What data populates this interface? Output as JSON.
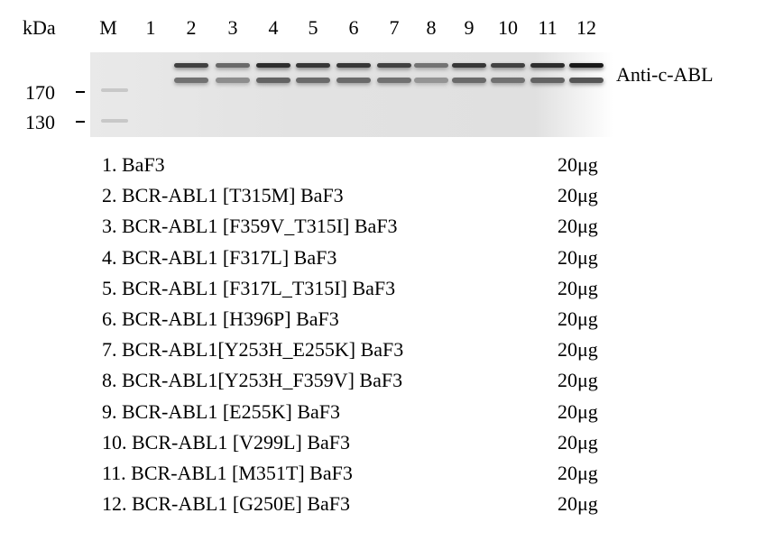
{
  "header": {
    "kda_label": "kDa",
    "marker_label": "M",
    "lanes": [
      "1",
      "2",
      "3",
      "4",
      "5",
      "6",
      "7",
      "8",
      "9",
      "10",
      "11",
      "12"
    ]
  },
  "markers": [
    {
      "label": "170"
    },
    {
      "label": "130"
    }
  ],
  "antibody_label": "Anti-c-ABL",
  "band_intensity": [
    0,
    0.8,
    0.6,
    0.9,
    0.85,
    0.85,
    0.8,
    0.55,
    0.85,
    0.8,
    0.9,
    1.0
  ],
  "samples": [
    {
      "label": "1. BaF3",
      "amount": "20μg"
    },
    {
      "label": "2. BCR-ABL1 [T315M] BaF3",
      "amount": "20μg"
    },
    {
      "label": "3. BCR-ABL1 [F359V_T315I] BaF3",
      "amount": "20μg"
    },
    {
      "label": "4. BCR-ABL1 [F317L] BaF3",
      "amount": "20μg"
    },
    {
      "label": "5. BCR-ABL1 [F317L_T315I] BaF3",
      "amount": "20μg"
    },
    {
      "label": "6. BCR-ABL1 [H396P] BaF3",
      "amount": "20μg"
    },
    {
      "label": "7. BCR-ABL1[Y253H_E255K] BaF3",
      "amount": "20μg"
    },
    {
      "label": "8. BCR-ABL1[Y253H_F359V] BaF3",
      "amount": "20μg"
    },
    {
      "label": "9. BCR-ABL1 [E255K] BaF3",
      "amount": "20μg"
    },
    {
      "label": "10. BCR-ABL1 [V299L] BaF3",
      "amount": "20μg"
    },
    {
      "label": "11. BCR-ABL1 [M351T] BaF3",
      "amount": "20μg"
    },
    {
      "label": "12. BCR-ABL1 [G250E] BaF3",
      "amount": "20μg"
    }
  ]
}
